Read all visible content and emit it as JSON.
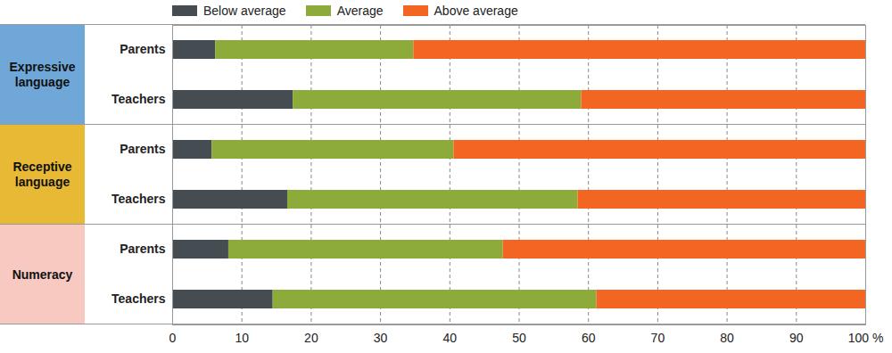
{
  "chart_data": {
    "type": "bar",
    "orientation": "horizontal",
    "stacked": true,
    "grid": true,
    "legend": "top",
    "data_labels": false,
    "groups": [
      {
        "name": "Expressive language",
        "color": "#6fa8d8",
        "categories": [
          "Parents",
          "Teachers"
        ]
      },
      {
        "name": "Receptive language",
        "color": "#e8b935",
        "categories": [
          "Parents",
          "Teachers"
        ]
      },
      {
        "name": "Numeracy",
        "color": "#f7c9c0",
        "categories": [
          "Parents",
          "Teachers"
        ]
      }
    ],
    "series": [
      {
        "name": "Below average",
        "color": "#454c52",
        "values": [
          6.2,
          17.4,
          5.7,
          16.6,
          8.1,
          14.5
        ]
      },
      {
        "name": "Average",
        "color": "#8cab3a",
        "values": [
          28.6,
          41.6,
          34.9,
          41.9,
          39.6,
          46.7
        ]
      },
      {
        "name": "Above average",
        "color": "#f26522",
        "values": [
          65.2,
          41.0,
          59.4,
          41.5,
          52.3,
          38.8
        ]
      }
    ],
    "xlim": [
      0,
      100
    ],
    "xticks": [
      0,
      10,
      20,
      30,
      40,
      50,
      60,
      70,
      80,
      90,
      {
        "value": 100,
        "label": "100 %"
      }
    ]
  }
}
